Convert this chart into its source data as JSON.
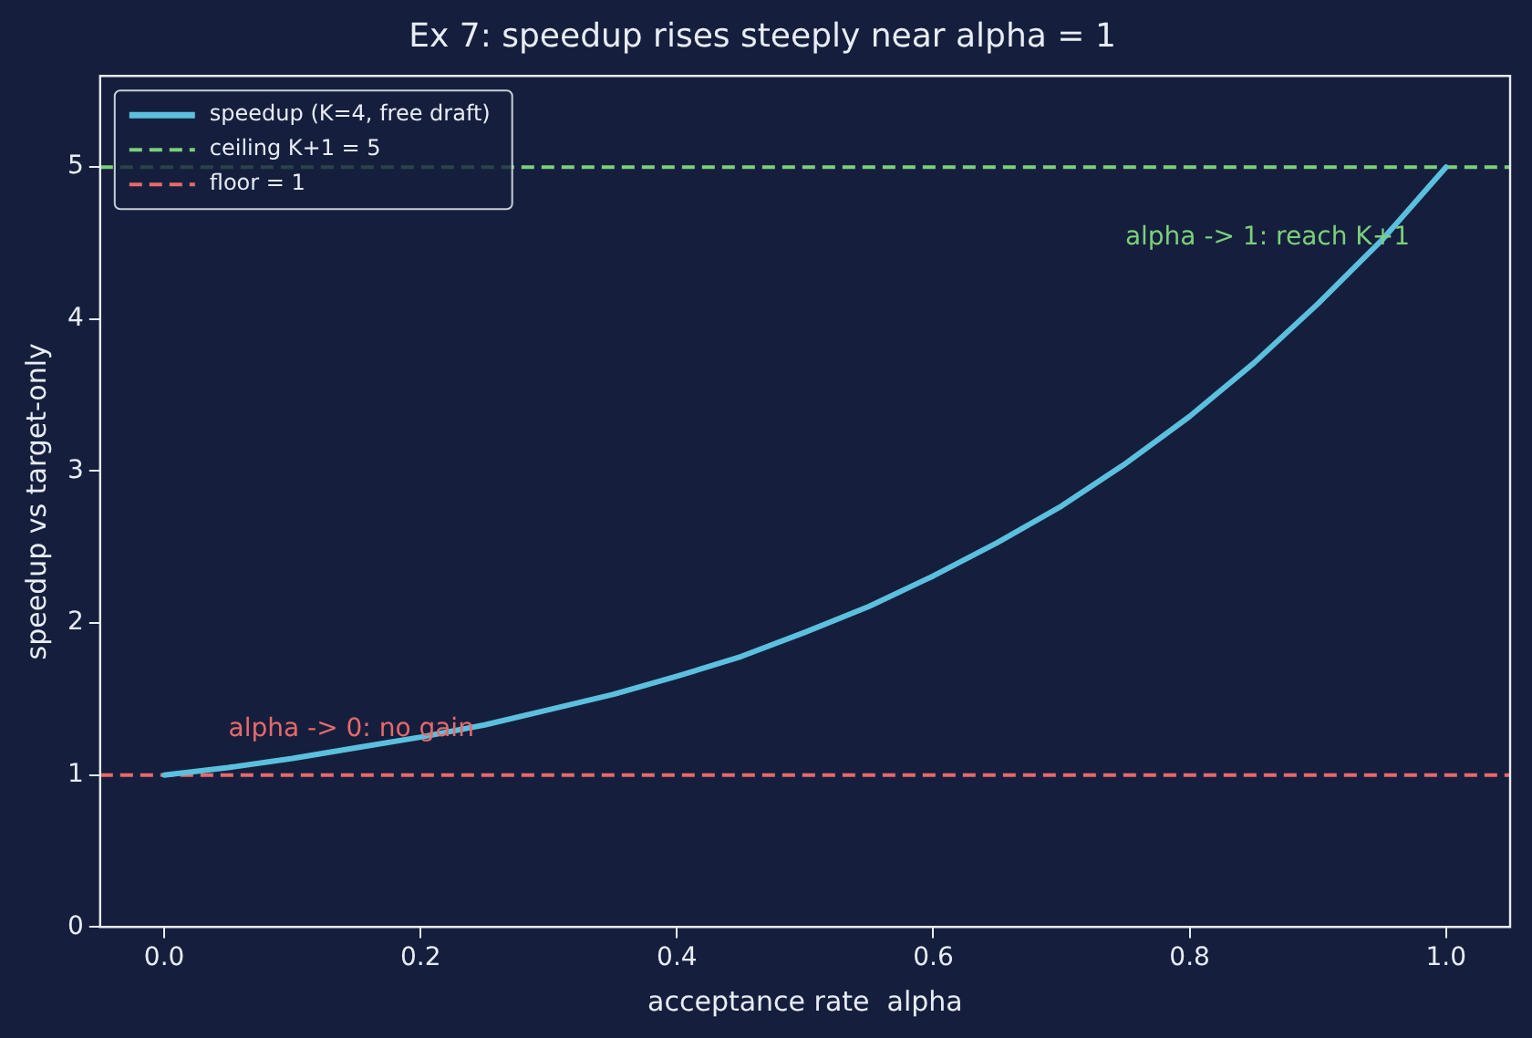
{
  "chart_data": {
    "type": "line",
    "title": "Ex 7: speedup rises steeply near alpha = 1",
    "xlabel": "acceptance rate  alpha",
    "ylabel": "speedup vs target-only",
    "x": [
      0,
      0.05,
      0.1,
      0.15,
      0.2,
      0.25,
      0.3,
      0.35,
      0.4,
      0.45,
      0.5,
      0.55,
      0.6,
      0.65,
      0.7,
      0.75,
      0.8,
      0.85,
      0.9,
      0.95,
      1
    ],
    "series": [
      {
        "name": "speedup (K=4, free draft)",
        "color": "#5bc0de",
        "values": [
          1,
          1.05,
          1.11,
          1.18,
          1.25,
          1.33,
          1.43,
          1.53,
          1.65,
          1.78,
          1.94,
          2.11,
          2.31,
          2.53,
          2.77,
          3.05,
          3.36,
          3.71,
          4.1,
          4.52,
          5
        ]
      }
    ],
    "ref_lines": [
      {
        "axis": "y",
        "value": 5,
        "label": "ceiling K+1 = 5",
        "color": "#7ccf7a",
        "line_style": "dashed"
      },
      {
        "axis": "y",
        "value": 1,
        "label": "floor = 1",
        "color": "#e8696b",
        "line_style": "dashed"
      }
    ],
    "annotations": [
      "alpha -> 1: reach K+1",
      "alpha -> 0: no gain"
    ],
    "xlim": [
      -0.05,
      1.05
    ],
    "ylim": [
      0,
      5.6
    ],
    "xticks": [
      {
        "value": 0,
        "label": "0.0"
      },
      0.2,
      0.4,
      0.6,
      0.8,
      {
        "value": 1,
        "label": "1.0"
      }
    ],
    "yticks": [
      0,
      1,
      2,
      3,
      4,
      5
    ],
    "grid": false,
    "legend": "top left",
    "marker": "none",
    "line_style": "solid"
  }
}
